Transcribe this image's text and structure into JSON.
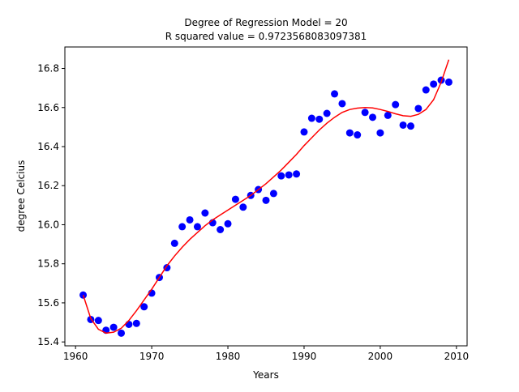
{
  "chart_data": {
    "type": "scatter",
    "title": "Degree of Regression Model = 20",
    "subtitle": "R squared value = 0.9723568083097381",
    "xlabel": "Years",
    "ylabel": "degree Celcius",
    "xlim": [
      1958.6,
      2011.4
    ],
    "ylim": [
      15.38,
      16.91
    ],
    "xticks": [
      1960,
      1970,
      1980,
      1990,
      2000,
      2010
    ],
    "yticks": [
      15.4,
      15.6,
      15.8,
      16.0,
      16.2,
      16.4,
      16.6,
      16.8
    ],
    "ytick_labels": [
      "15.4",
      "15.6",
      "15.8",
      "16.0",
      "16.2",
      "16.4",
      "16.6",
      "16.8"
    ],
    "grid": false,
    "colors": {
      "points": "#0000ff",
      "fit": "#ff0000"
    },
    "series": [
      {
        "kind": "scatter",
        "x": [
          1961,
          1962,
          1963,
          1964,
          1965,
          1966,
          1967,
          1968,
          1969,
          1970,
          1971,
          1972,
          1973,
          1974,
          1975,
          1976,
          1977,
          1978,
          1979,
          1980,
          1981,
          1982,
          1983,
          1984,
          1985,
          1986,
          1987,
          1988,
          1989,
          1990,
          1991,
          1992,
          1993,
          1994,
          1995,
          1996,
          1997,
          1998,
          1999,
          2000,
          2001,
          2002,
          2003,
          2004,
          2005,
          2006,
          2007,
          2008,
          2009
        ],
        "y": [
          15.64,
          15.515,
          15.51,
          15.46,
          15.475,
          15.445,
          15.49,
          15.495,
          15.58,
          15.65,
          15.73,
          15.78,
          15.905,
          15.99,
          16.025,
          15.99,
          16.06,
          16.01,
          15.975,
          16.005,
          16.13,
          16.09,
          16.15,
          16.18,
          16.125,
          16.16,
          16.25,
          16.255,
          16.26,
          16.475,
          16.545,
          16.54,
          16.57,
          16.67,
          16.62,
          16.47,
          16.46,
          16.575,
          16.55,
          16.47,
          16.56,
          16.615,
          16.51,
          16.505,
          16.595,
          16.69,
          16.72,
          16.74,
          16.73
        ]
      },
      {
        "kind": "line",
        "x": [
          1961,
          1962,
          1963,
          1964,
          1965,
          1966,
          1967,
          1968,
          1969,
          1970,
          1971,
          1972,
          1973,
          1974,
          1975,
          1976,
          1977,
          1978,
          1979,
          1980,
          1981,
          1982,
          1983,
          1984,
          1985,
          1986,
          1987,
          1988,
          1989,
          1990,
          1991,
          1992,
          1993,
          1994,
          1995,
          1996,
          1997,
          1998,
          1999,
          2000,
          2001,
          2002,
          2003,
          2004,
          2005,
          2006,
          2007,
          2008,
          2009
        ],
        "y": [
          15.64,
          15.52,
          15.465,
          15.445,
          15.45,
          15.47,
          15.51,
          15.56,
          15.615,
          15.67,
          15.73,
          15.79,
          15.84,
          15.885,
          15.925,
          15.96,
          15.995,
          16.025,
          16.05,
          16.075,
          16.1,
          16.125,
          16.15,
          16.18,
          16.21,
          16.245,
          16.28,
          16.32,
          16.36,
          16.405,
          16.445,
          16.485,
          16.52,
          16.55,
          16.575,
          16.59,
          16.597,
          16.6,
          16.598,
          16.59,
          16.58,
          16.568,
          16.558,
          16.555,
          16.565,
          16.59,
          16.64,
          16.73,
          16.845
        ]
      }
    ]
  }
}
